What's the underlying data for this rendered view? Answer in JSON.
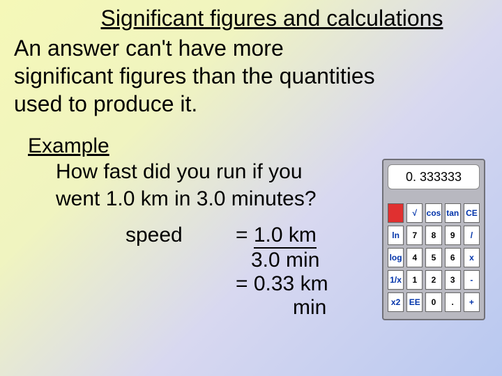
{
  "title": "Significant figures and calculations",
  "rule": "An answer can't have more significant figures than the quantities used to produce it.",
  "example": {
    "label": "Example",
    "question_l1": "How fast did you run if you",
    "question_l2": "went 1.0 km in 3.0 minutes?",
    "speed_label": "speed",
    "eq": "=",
    "numerator": "1.0 km",
    "denominator": "3.0 min",
    "result": "= 0.33 km",
    "result_unit": "min"
  },
  "calculator": {
    "display": "0. 333333",
    "rows": [
      [
        "",
        "√",
        "cos",
        "tan",
        "CE"
      ],
      [
        "ln",
        "7",
        "8",
        "9",
        "/"
      ],
      [
        "log",
        "4",
        "5",
        "6",
        "x"
      ],
      [
        "1/x",
        "1",
        "2",
        "3",
        "-"
      ],
      [
        "x2",
        "EE",
        "0",
        ".",
        "+"
      ]
    ],
    "colors": {
      "body": "#b8b8c0",
      "border": "#707078",
      "display_bg": "#ffffff",
      "btn_bg": "#ffffff",
      "btn_red": "#e03030",
      "btn_text_fn": "#0033aa",
      "btn_text_num": "#000000"
    }
  }
}
